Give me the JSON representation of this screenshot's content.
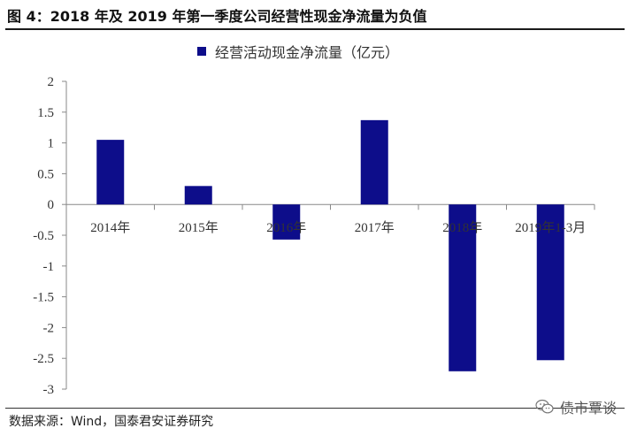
{
  "header": {
    "title": "图 4：2018 年及 2019 年第一季度公司经营性现金净流量为负值"
  },
  "footer": {
    "source": "数据来源：Wind，国泰君安证券研究",
    "watermark": "债市覃谈",
    "watermark_icon": "wechat-icon"
  },
  "colors": {
    "bar": "#0d0d8a",
    "axis": "#888888"
  },
  "chart_data": {
    "type": "bar",
    "title": "",
    "xlabel": "",
    "ylabel": "",
    "categories": [
      "2014年",
      "2015年",
      "2016年",
      "2017年",
      "2018年",
      "2019年1-3月"
    ],
    "series": [
      {
        "name": "经营活动现金净流量（亿元）",
        "values": [
          1.05,
          0.3,
          -0.57,
          1.37,
          -2.71,
          -2.53
        ]
      }
    ],
    "ylim": [
      -3,
      2
    ],
    "yticks": [
      "2",
      "1.5",
      "1",
      "0.5",
      "0",
      "-0.5",
      "-1",
      "-1.5",
      "-2",
      "-2.5",
      "-3"
    ],
    "ytick_values": [
      2,
      1.5,
      1,
      0.5,
      0,
      -0.5,
      -1,
      -1.5,
      -2,
      -2.5,
      -3
    ],
    "grid": false,
    "legend_position": "top-center"
  }
}
